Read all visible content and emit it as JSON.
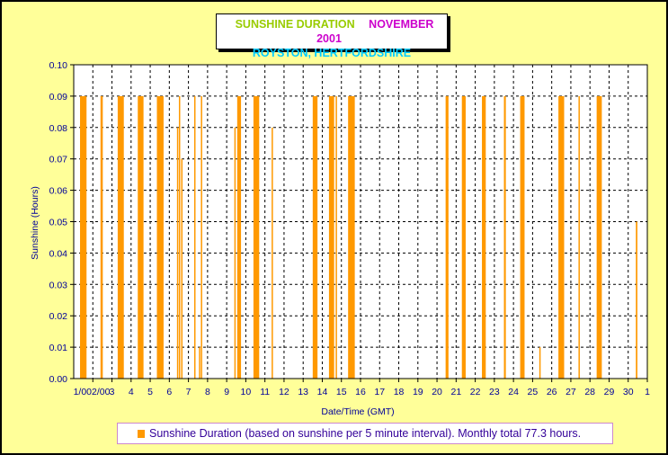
{
  "colors": {
    "background": "#ffff99",
    "plot_area": "#ffffff",
    "bar": "#ff9900",
    "title_green": "#99cc00",
    "title_magenta": "#cc00cc",
    "title_cyan": "#00ccff",
    "axis_text": "#000099",
    "legend_text": "#330099"
  },
  "header": {
    "title_part1": "SUNSHINE DURATION",
    "title_part2": "NOVEMBER 2001",
    "subtitle": "ROYSTON, HERTFORDSHIRE"
  },
  "legend": {
    "label": "Sunshine Duration (based on sunshine per 5 minute interval). Monthly total 77.3 hours."
  },
  "chart_data": {
    "type": "bar",
    "title": "SUNSHINE DURATION NOVEMBER 2001",
    "subtitle": "ROYSTON, HERTFORDSHIRE",
    "xlabel": "Date/Time (GMT)",
    "ylabel": "Sunshine (Hours)",
    "ylim": [
      0,
      0.1
    ],
    "yticks": [
      "0.00",
      "0.01",
      "0.02",
      "0.03",
      "0.04",
      "0.05",
      "0.06",
      "0.07",
      "0.08",
      "0.09",
      "0.10"
    ],
    "xticks": [
      "1/002/00",
      "3",
      "4",
      "5",
      "6",
      "7",
      "8",
      "9",
      "10",
      "11",
      "12",
      "13",
      "14",
      "15",
      "16",
      "17",
      "18",
      "19",
      "20",
      "21",
      "22",
      "23",
      "24",
      "25",
      "26",
      "27",
      "28",
      "29",
      "30",
      "1"
    ],
    "xlim_days": [
      1,
      31
    ],
    "grid": true,
    "legend_position": "bottom",
    "series": [
      {
        "name": "Sunshine Duration (based on sunshine per 5 minute interval). Monthly total 77.3 hours.",
        "bars": [
          {
            "start": 1.33,
            "end": 1.67,
            "value": 0.09
          },
          {
            "start": 2.4,
            "end": 2.52,
            "value": 0.09
          },
          {
            "start": 3.3,
            "end": 3.62,
            "value": 0.09
          },
          {
            "start": 4.35,
            "end": 4.65,
            "value": 0.09
          },
          {
            "start": 5.35,
            "end": 5.7,
            "value": 0.09
          },
          {
            "start": 6.4,
            "end": 6.46,
            "value": 0.08
          },
          {
            "start": 6.5,
            "end": 6.56,
            "value": 0.09
          },
          {
            "start": 6.62,
            "end": 6.66,
            "value": 0.07
          },
          {
            "start": 7.3,
            "end": 7.34,
            "value": 0.09
          },
          {
            "start": 7.55,
            "end": 7.61,
            "value": 0.01
          },
          {
            "start": 7.65,
            "end": 7.7,
            "value": 0.09
          },
          {
            "start": 9.4,
            "end": 9.46,
            "value": 0.08
          },
          {
            "start": 9.55,
            "end": 9.75,
            "value": 0.09
          },
          {
            "start": 10.4,
            "end": 10.7,
            "value": 0.09
          },
          {
            "start": 11.35,
            "end": 11.42,
            "value": 0.08
          },
          {
            "start": 13.5,
            "end": 13.75,
            "value": 0.09
          },
          {
            "start": 14.35,
            "end": 14.62,
            "value": 0.09
          },
          {
            "start": 14.7,
            "end": 14.76,
            "value": 0.09
          },
          {
            "start": 15.35,
            "end": 15.7,
            "value": 0.09
          },
          {
            "start": 20.45,
            "end": 20.6,
            "value": 0.09
          },
          {
            "start": 21.3,
            "end": 21.5,
            "value": 0.09
          },
          {
            "start": 22.35,
            "end": 22.55,
            "value": 0.09
          },
          {
            "start": 23.5,
            "end": 23.6,
            "value": 0.09
          },
          {
            "start": 24.35,
            "end": 24.58,
            "value": 0.09
          },
          {
            "start": 25.35,
            "end": 25.4,
            "value": 0.01
          },
          {
            "start": 26.35,
            "end": 26.65,
            "value": 0.09
          },
          {
            "start": 27.4,
            "end": 27.45,
            "value": 0.09
          },
          {
            "start": 28.35,
            "end": 28.62,
            "value": 0.09
          },
          {
            "start": 30.4,
            "end": 30.48,
            "value": 0.05
          }
        ]
      }
    ]
  }
}
